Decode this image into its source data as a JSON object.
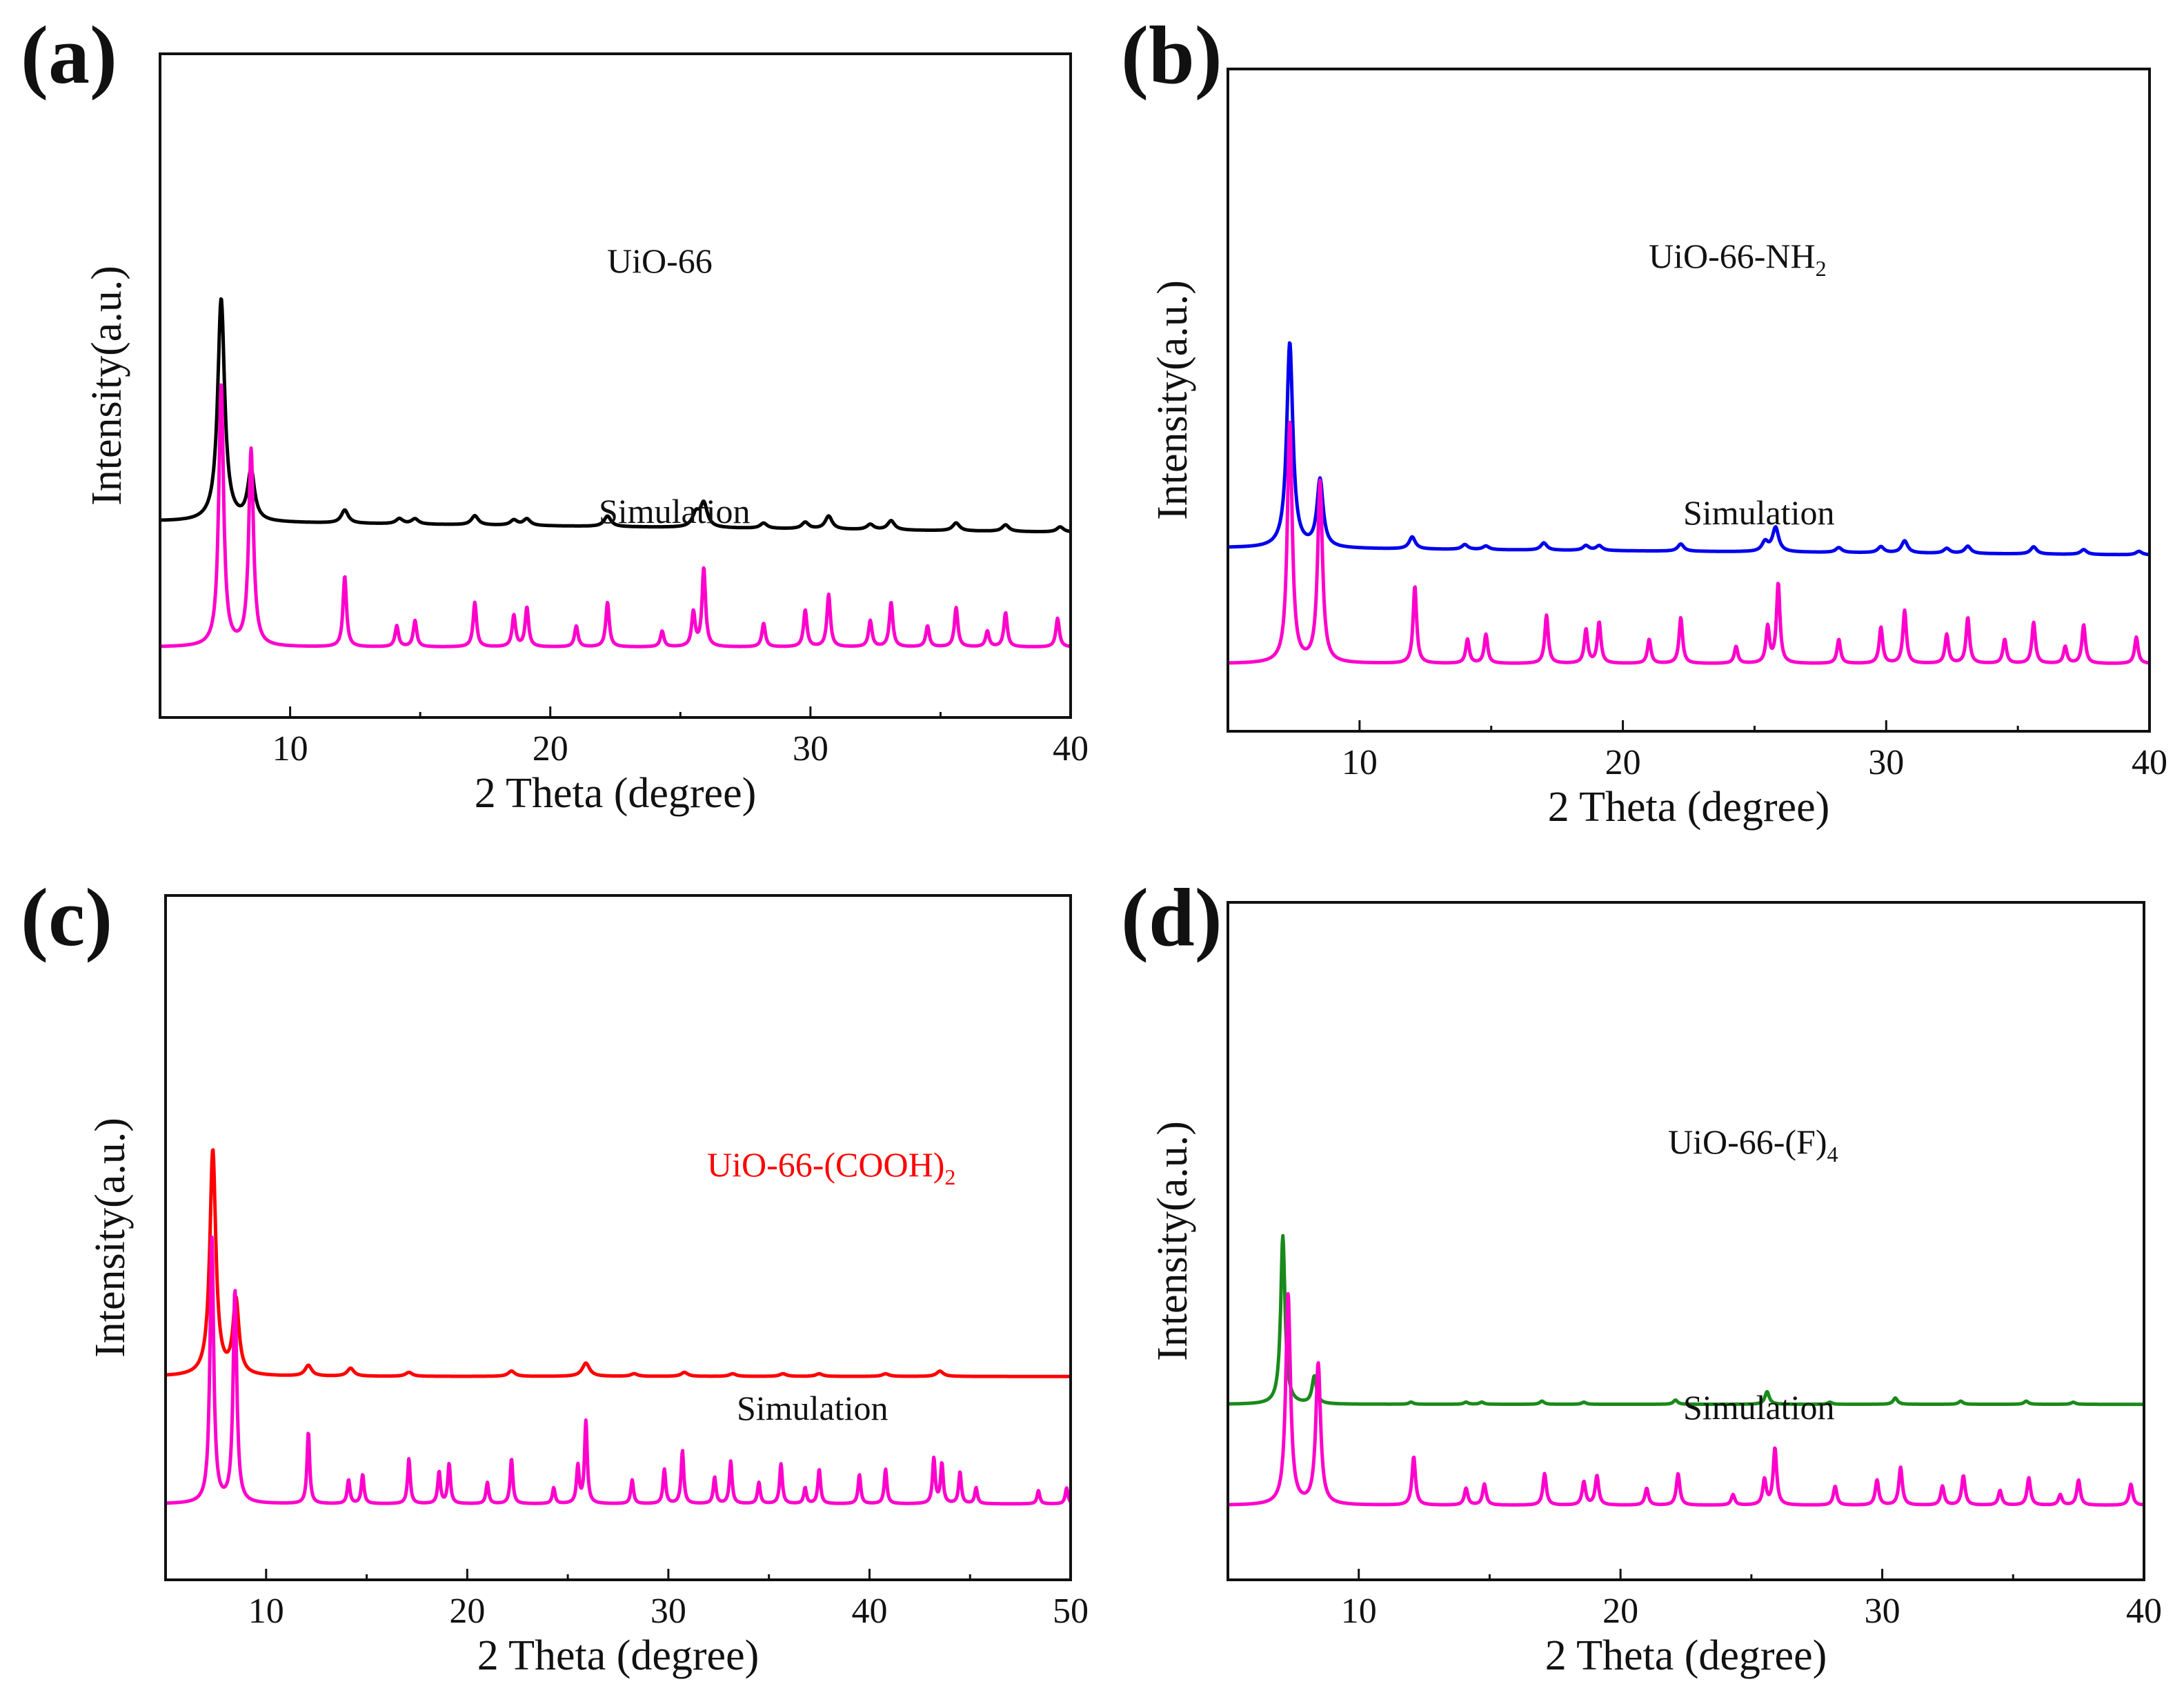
{
  "chart_data": [
    {
      "panel": "(a)",
      "type": "line",
      "xlabel": "2 Theta (degree)",
      "ylabel": "Intensity(a.u.)",
      "xlim": [
        5,
        40
      ],
      "xticks": [
        "10",
        "20",
        "30",
        "40"
      ],
      "yticks": "none",
      "series": [
        {
          "name": "UiO-66",
          "label_main": "UiO-66",
          "label_sub": "",
          "color": "#000000",
          "role": "measured",
          "offset": 1.0,
          "baseline_end": 0.93,
          "peaks": [
            [
              7.35,
              0.85,
              0.16
            ],
            [
              8.5,
              0.19,
              0.16
            ],
            [
              12.1,
              0.05,
              0.16
            ],
            [
              14.2,
              0.02,
              0.16
            ],
            [
              14.8,
              0.02,
              0.16
            ],
            [
              17.1,
              0.035,
              0.16
            ],
            [
              18.6,
              0.02,
              0.16
            ],
            [
              19.1,
              0.025,
              0.16
            ],
            [
              22.2,
              0.04,
              0.16
            ],
            [
              25.6,
              0.05,
              0.16
            ],
            [
              25.9,
              0.09,
              0.16
            ],
            [
              28.2,
              0.02,
              0.16
            ],
            [
              29.8,
              0.025,
              0.16
            ],
            [
              30.7,
              0.05,
              0.16
            ],
            [
              32.3,
              0.02,
              0.16
            ],
            [
              33.1,
              0.035,
              0.16
            ],
            [
              35.6,
              0.03,
              0.16
            ],
            [
              37.5,
              0.025,
              0.16
            ],
            [
              39.6,
              0.02,
              0.16
            ]
          ]
        },
        {
          "name": "Simulation",
          "label_main": "Simulation",
          "label_sub": "",
          "color": "#ff00cc",
          "role": "simulated",
          "offset": 0.0,
          "peaks": [
            [
              7.35,
              1.0,
              0.11
            ],
            [
              8.5,
              0.75,
              0.11
            ],
            [
              12.1,
              0.27,
              0.08
            ],
            [
              14.1,
              0.08,
              0.08
            ],
            [
              14.8,
              0.1,
              0.08
            ],
            [
              17.1,
              0.17,
              0.08
            ],
            [
              18.6,
              0.12,
              0.08
            ],
            [
              19.1,
              0.15,
              0.08
            ],
            [
              21.0,
              0.08,
              0.08
            ],
            [
              22.2,
              0.17,
              0.08
            ],
            [
              24.3,
              0.06,
              0.08
            ],
            [
              25.5,
              0.13,
              0.08
            ],
            [
              25.9,
              0.3,
              0.08
            ],
            [
              28.2,
              0.09,
              0.08
            ],
            [
              29.8,
              0.14,
              0.08
            ],
            [
              30.7,
              0.2,
              0.08
            ],
            [
              32.3,
              0.1,
              0.08
            ],
            [
              33.1,
              0.17,
              0.08
            ],
            [
              34.5,
              0.08,
              0.08
            ],
            [
              35.6,
              0.15,
              0.08
            ],
            [
              36.8,
              0.06,
              0.08
            ],
            [
              37.5,
              0.13,
              0.08
            ],
            [
              39.5,
              0.11,
              0.08
            ]
          ]
        }
      ]
    },
    {
      "panel": "(b)",
      "type": "line",
      "xlabel": "2 Theta (degree)",
      "ylabel": "Intensity(a.u.)",
      "xlim": [
        5,
        40
      ],
      "xticks": [
        "10",
        "20",
        "30",
        "40"
      ],
      "yticks": "none",
      "series": [
        {
          "name": "UiO-66-NH2",
          "label_main": "UiO-66-NH",
          "label_sub": "2",
          "color": "#0000ee",
          "role": "measured",
          "offset": 1.0,
          "baseline_end": 0.95,
          "peaks": [
            [
              7.35,
              0.85,
              0.14
            ],
            [
              8.5,
              0.28,
              0.14
            ],
            [
              12.0,
              0.05,
              0.14
            ],
            [
              14.0,
              0.02,
              0.14
            ],
            [
              14.8,
              0.015,
              0.14
            ],
            [
              17.0,
              0.03,
              0.14
            ],
            [
              18.6,
              0.02,
              0.14
            ],
            [
              19.1,
              0.02,
              0.14
            ],
            [
              22.2,
              0.03,
              0.14
            ],
            [
              25.4,
              0.04,
              0.14
            ],
            [
              25.8,
              0.1,
              0.14
            ],
            [
              28.2,
              0.02,
              0.14
            ],
            [
              29.8,
              0.025,
              0.14
            ],
            [
              30.7,
              0.05,
              0.14
            ],
            [
              32.3,
              0.02,
              0.14
            ],
            [
              33.1,
              0.03,
              0.14
            ],
            [
              35.6,
              0.03,
              0.14
            ],
            [
              37.5,
              0.02,
              0.14
            ],
            [
              39.6,
              0.015,
              0.14
            ]
          ]
        },
        {
          "name": "Simulation",
          "label_main": "Simulation",
          "label_sub": "",
          "color": "#ff00cc",
          "role": "simulated",
          "offset": 0.0,
          "peaks": [
            [
              7.35,
              1.0,
              0.11
            ],
            [
              8.5,
              0.75,
              0.11
            ],
            [
              12.1,
              0.32,
              0.08
            ],
            [
              14.1,
              0.1,
              0.08
            ],
            [
              14.8,
              0.12,
              0.08
            ],
            [
              17.1,
              0.2,
              0.08
            ],
            [
              18.6,
              0.14,
              0.08
            ],
            [
              19.1,
              0.17,
              0.08
            ],
            [
              21.0,
              0.1,
              0.08
            ],
            [
              22.2,
              0.19,
              0.08
            ],
            [
              24.3,
              0.07,
              0.08
            ],
            [
              25.5,
              0.15,
              0.08
            ],
            [
              25.9,
              0.33,
              0.08
            ],
            [
              28.2,
              0.1,
              0.08
            ],
            [
              29.8,
              0.15,
              0.08
            ],
            [
              30.7,
              0.22,
              0.08
            ],
            [
              32.3,
              0.12,
              0.08
            ],
            [
              33.1,
              0.19,
              0.08
            ],
            [
              34.5,
              0.1,
              0.08
            ],
            [
              35.6,
              0.17,
              0.08
            ],
            [
              36.8,
              0.07,
              0.08
            ],
            [
              37.5,
              0.16,
              0.08
            ],
            [
              39.5,
              0.11,
              0.08
            ]
          ]
        }
      ]
    },
    {
      "panel": "(c)",
      "type": "line",
      "xlabel": "2 Theta (degree)",
      "ylabel": "Intensity(a.u.)",
      "xlim": [
        5,
        50
      ],
      "xticks": [
        "10",
        "20",
        "30",
        "40",
        "50"
      ],
      "yticks": "none",
      "series": [
        {
          "name": "UiO-66-(COOH)2",
          "label_main": "UiO-66-(COOH)",
          "label_sub": "2",
          "color": "#ff0000",
          "role": "measured",
          "offset": 1.0,
          "baseline_end": 1.0,
          "peaks": [
            [
              7.35,
              0.85,
              0.18
            ],
            [
              8.5,
              0.28,
              0.18
            ],
            [
              12.1,
              0.04,
              0.2
            ],
            [
              14.2,
              0.03,
              0.2
            ],
            [
              17.1,
              0.015,
              0.2
            ],
            [
              22.2,
              0.02,
              0.2
            ],
            [
              25.9,
              0.05,
              0.22
            ],
            [
              28.3,
              0.01,
              0.2
            ],
            [
              30.8,
              0.015,
              0.2
            ],
            [
              33.2,
              0.01,
              0.2
            ],
            [
              35.7,
              0.01,
              0.2
            ],
            [
              37.5,
              0.01,
              0.2
            ],
            [
              40.8,
              0.01,
              0.2
            ],
            [
              43.5,
              0.02,
              0.2
            ]
          ]
        },
        {
          "name": "Simulation",
          "label_main": "Simulation",
          "label_sub": "",
          "color": "#ff00cc",
          "role": "simulated",
          "offset": 0.0,
          "peaks": [
            [
              7.3,
              1.0,
              0.11
            ],
            [
              8.45,
              0.8,
              0.11
            ],
            [
              12.1,
              0.27,
              0.08
            ],
            [
              14.1,
              0.09,
              0.08
            ],
            [
              14.8,
              0.11,
              0.08
            ],
            [
              17.1,
              0.17,
              0.08
            ],
            [
              18.6,
              0.12,
              0.08
            ],
            [
              19.1,
              0.15,
              0.08
            ],
            [
              21.0,
              0.08,
              0.08
            ],
            [
              22.2,
              0.17,
              0.08
            ],
            [
              24.3,
              0.06,
              0.08
            ],
            [
              25.5,
              0.14,
              0.08
            ],
            [
              25.9,
              0.31,
              0.08
            ],
            [
              28.2,
              0.09,
              0.08
            ],
            [
              29.8,
              0.13,
              0.08
            ],
            [
              30.7,
              0.2,
              0.08
            ],
            [
              32.3,
              0.1,
              0.08
            ],
            [
              33.1,
              0.16,
              0.08
            ],
            [
              34.5,
              0.08,
              0.08
            ],
            [
              35.6,
              0.15,
              0.08
            ],
            [
              36.8,
              0.06,
              0.08
            ],
            [
              37.5,
              0.13,
              0.08
            ],
            [
              39.5,
              0.11,
              0.08
            ],
            [
              40.8,
              0.13,
              0.08
            ],
            [
              43.2,
              0.17,
              0.08
            ],
            [
              43.6,
              0.15,
              0.08
            ],
            [
              44.5,
              0.12,
              0.08
            ],
            [
              45.3,
              0.06,
              0.08
            ],
            [
              48.4,
              0.05,
              0.08
            ],
            [
              49.8,
              0.06,
              0.08
            ]
          ]
        }
      ]
    },
    {
      "panel": "(d)",
      "type": "line",
      "xlabel": "2 Theta (degree)",
      "ylabel": "Intensity(a.u.)",
      "xlim": [
        5,
        40
      ],
      "xticks": [
        "10",
        "20",
        "30",
        "40"
      ],
      "yticks": "none",
      "series": [
        {
          "name": "UiO-66-(F)4",
          "label_main": "UiO-66-(F)",
          "label_sub": "4",
          "color": "#1a8a1a",
          "role": "measured",
          "offset": 1.0,
          "baseline_end": 1.0,
          "peaks": [
            [
              7.1,
              0.8,
              0.1
            ],
            [
              8.3,
              0.13,
              0.1
            ],
            [
              12.0,
              0.01,
              0.1
            ],
            [
              14.1,
              0.01,
              0.1
            ],
            [
              14.7,
              0.01,
              0.1
            ],
            [
              17.0,
              0.015,
              0.1
            ],
            [
              18.6,
              0.01,
              0.1
            ],
            [
              22.1,
              0.02,
              0.1
            ],
            [
              25.6,
              0.06,
              0.1
            ],
            [
              28.0,
              0.01,
              0.1
            ],
            [
              30.5,
              0.03,
              0.1
            ],
            [
              33.0,
              0.015,
              0.1
            ],
            [
              35.5,
              0.015,
              0.1
            ],
            [
              37.3,
              0.01,
              0.1
            ]
          ]
        },
        {
          "name": "Simulation",
          "label_main": "Simulation",
          "label_sub": "",
          "color": "#ff00cc",
          "role": "simulated",
          "offset": 0.0,
          "peaks": [
            [
              7.3,
              1.0,
              0.11
            ],
            [
              8.45,
              0.67,
              0.11
            ],
            [
              12.1,
              0.23,
              0.08
            ],
            [
              14.1,
              0.08,
              0.08
            ],
            [
              14.8,
              0.1,
              0.08
            ],
            [
              17.1,
              0.15,
              0.08
            ],
            [
              18.6,
              0.11,
              0.08
            ],
            [
              19.1,
              0.14,
              0.08
            ],
            [
              21.0,
              0.08,
              0.08
            ],
            [
              22.2,
              0.15,
              0.08
            ],
            [
              24.3,
              0.05,
              0.08
            ],
            [
              25.5,
              0.12,
              0.08
            ],
            [
              25.9,
              0.27,
              0.08
            ],
            [
              28.2,
              0.09,
              0.08
            ],
            [
              29.8,
              0.12,
              0.08
            ],
            [
              30.7,
              0.18,
              0.08
            ],
            [
              32.3,
              0.09,
              0.08
            ],
            [
              33.1,
              0.14,
              0.08
            ],
            [
              34.5,
              0.07,
              0.08
            ],
            [
              35.6,
              0.13,
              0.08
            ],
            [
              36.8,
              0.05,
              0.08
            ],
            [
              37.5,
              0.12,
              0.08
            ],
            [
              39.5,
              0.1,
              0.08
            ]
          ]
        }
      ]
    }
  ]
}
